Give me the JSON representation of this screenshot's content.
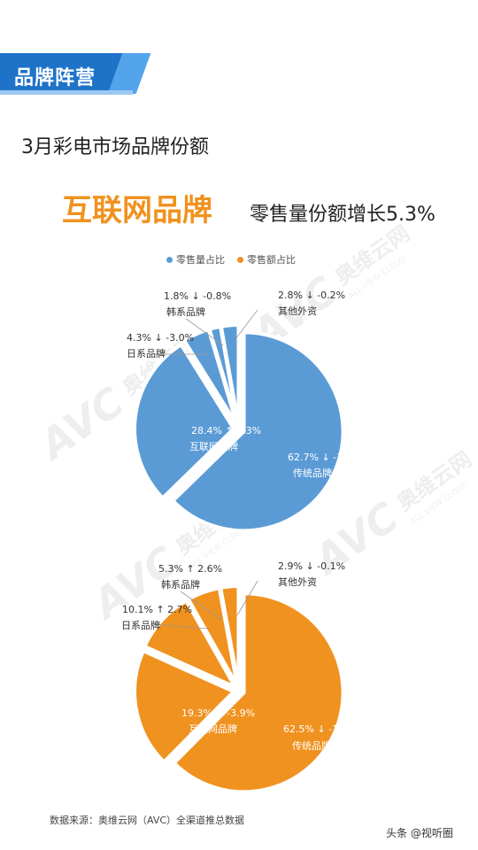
{
  "header": {
    "section_label": "品牌阵营",
    "subtitle": "3月彩电市场品牌份额"
  },
  "headline": {
    "highlight": "互联网品牌",
    "rest": "零售量份额增长5.3%"
  },
  "legend": [
    {
      "label": "零售量占比",
      "color": "#5b9bd5"
    },
    {
      "label": "零售额占比",
      "color": "#f0921f"
    }
  ],
  "watermark": {
    "logo": "AVC",
    "cn": "奥维云网",
    "en": "ALL VIEW CLOUD"
  },
  "chart_data": [
    {
      "type": "pie",
      "title": "零售量占比",
      "color": "#5b9bd5",
      "slices": [
        {
          "label": "传统品牌",
          "value": 62.7,
          "change": "↓ -1.2%"
        },
        {
          "label": "互联网品牌",
          "value": 28.4,
          "change": "↑ 5.3%"
        },
        {
          "label": "日系品牌",
          "value": 4.3,
          "change": "↓ -3.0%"
        },
        {
          "label": "韩系品牌",
          "value": 1.8,
          "change": "↓ -0.8%"
        },
        {
          "label": "其他外资",
          "value": 2.8,
          "change": "↓ -0.2%"
        }
      ]
    },
    {
      "type": "pie",
      "title": "零售额占比",
      "color": "#f0921f",
      "slices": [
        {
          "label": "传统品牌",
          "value": 62.5,
          "change": "↓ -1.4%"
        },
        {
          "label": "互联网品牌",
          "value": 19.3,
          "change": "↓ -3.9%"
        },
        {
          "label": "日系品牌",
          "value": 10.1,
          "change": "↑ 2.7%"
        },
        {
          "label": "韩系品牌",
          "value": 5.3,
          "change": "↑ 2.6%"
        },
        {
          "label": "其他外资",
          "value": 2.9,
          "change": "↓ -0.1%"
        }
      ]
    }
  ],
  "footer": {
    "source": "数据来源：奥维云网（AVC）全渠道推总数据",
    "brand": "头条 @视听圈"
  }
}
